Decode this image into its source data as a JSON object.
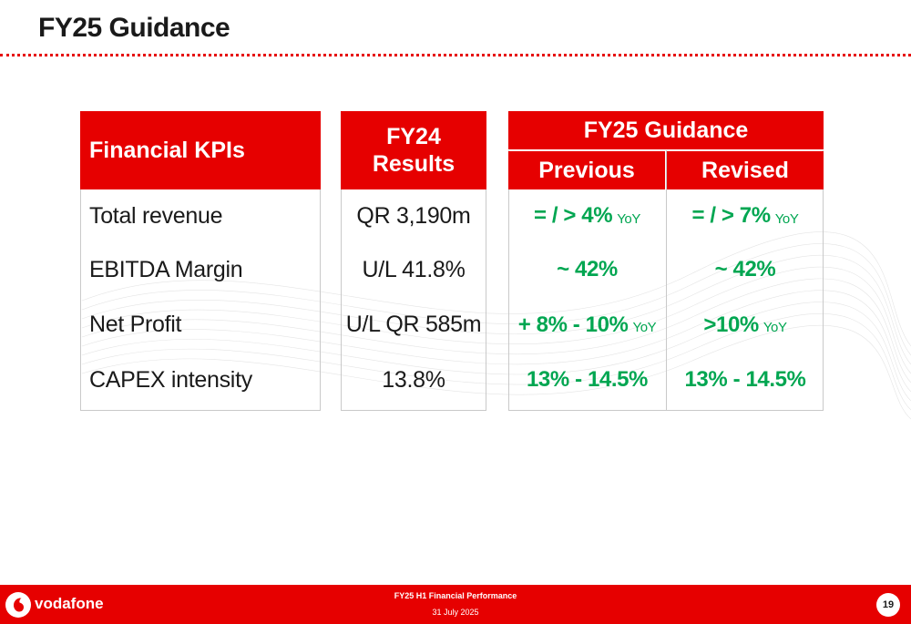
{
  "title": "FY25 Guidance",
  "table": {
    "kpi_header": "Financial KPIs",
    "fy24_header_line1": "FY24",
    "fy24_header_line2": "Results",
    "guidance_header": "FY25 Guidance",
    "previous_header": "Previous",
    "revised_header": "Revised",
    "rows": [
      {
        "label": "Total revenue",
        "fy24": "QR 3,190m",
        "previous": "= / > 4%",
        "previous_suffix": "YoY",
        "revised": "= / > 7%",
        "revised_suffix": "YoY"
      },
      {
        "label": "EBITDA Margin",
        "fy24": "U/L 41.8%",
        "previous": "~ 42%",
        "previous_suffix": "",
        "revised": "~ 42%",
        "revised_suffix": ""
      },
      {
        "label": "Net Profit",
        "fy24": "U/L QR 585m",
        "previous": "+ 8% - 10%",
        "previous_suffix": "YoY",
        "revised": ">10%",
        "revised_suffix": "YoY"
      },
      {
        "label": "CAPEX intensity",
        "fy24": "13.8%",
        "previous": "13% - 14.5%",
        "previous_suffix": "",
        "revised": "13% - 14.5%",
        "revised_suffix": ""
      }
    ]
  },
  "footer": {
    "brand": "vodafone",
    "logo_icon": "vodafone-speechmark-icon",
    "presentation_title": "FY25 H1 Financial Performance",
    "date": "31 July 2025",
    "page_number": "19"
  },
  "colors": {
    "brand_red": "#e60000",
    "positive_green": "#00a651"
  }
}
